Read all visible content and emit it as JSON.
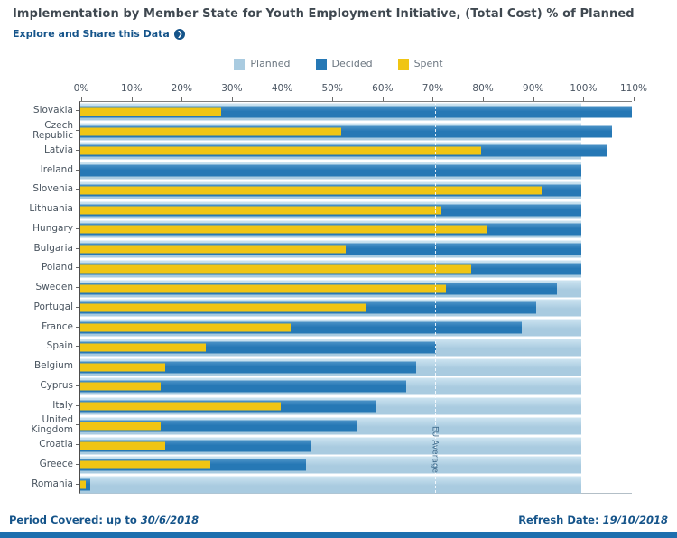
{
  "header": {
    "title": "Implementation by Member State for Youth Employment Initiative, (Total Cost) % of Planned",
    "link_label": "Explore and Share this Data",
    "link_icon": "arrow-right-circle"
  },
  "colors": {
    "accent_blue": "#15548a",
    "bottom_bar_blue": "#1d6fae",
    "planned": "#a9cbe0",
    "decided": "#2678b5",
    "spent": "#f0c513"
  },
  "chart_data": {
    "type": "bar",
    "orientation": "horizontal",
    "title": "Implementation by Member State for Youth Employment Initiative, (Total Cost) % of Planned",
    "xlabel": "",
    "ylabel": "",
    "xlim": [
      0,
      110
    ],
    "x_ticks": [
      "0%",
      "10%",
      "20%",
      "30%",
      "40%",
      "50%",
      "60%",
      "70%",
      "80%",
      "90%",
      "100%",
      "110%"
    ],
    "legend_position": "top-center",
    "grid": false,
    "categories": [
      "Slovakia",
      "Czech Republic",
      "Latvia",
      "Ireland",
      "Slovenia",
      "Lithuania",
      "Hungary",
      "Bulgaria",
      "Poland",
      "Sweden",
      "Portugal",
      "France",
      "Spain",
      "Belgium",
      "Cyprus",
      "Italy",
      "United Kingdom",
      "Croatia",
      "Greece",
      "Romania"
    ],
    "series": [
      {
        "name": "Planned",
        "color": "#a9cbe0",
        "values": [
          100,
          100,
          100,
          100,
          100,
          100,
          100,
          100,
          100,
          100,
          100,
          100,
          100,
          100,
          100,
          100,
          100,
          100,
          100,
          100
        ]
      },
      {
        "name": "Decided",
        "color": "#2678b5",
        "values": [
          110,
          106,
          105,
          100,
          100,
          100,
          100,
          100,
          100,
          95,
          91,
          88,
          71,
          67,
          65,
          59,
          55,
          46,
          45,
          2
        ]
      },
      {
        "name": "Spent",
        "color": "#f0c513",
        "values": [
          28,
          52,
          80,
          0,
          92,
          72,
          81,
          53,
          78,
          73,
          57,
          42,
          25,
          17,
          16,
          40,
          16,
          17,
          26,
          1
        ]
      }
    ],
    "reference_line": {
      "label": "EU Average",
      "value": 70.7
    }
  },
  "footer": {
    "period_label": "Period Covered: up to",
    "period_value": "30/6/2018",
    "refresh_label": "Refresh Date:",
    "refresh_value": "19/10/2018"
  }
}
